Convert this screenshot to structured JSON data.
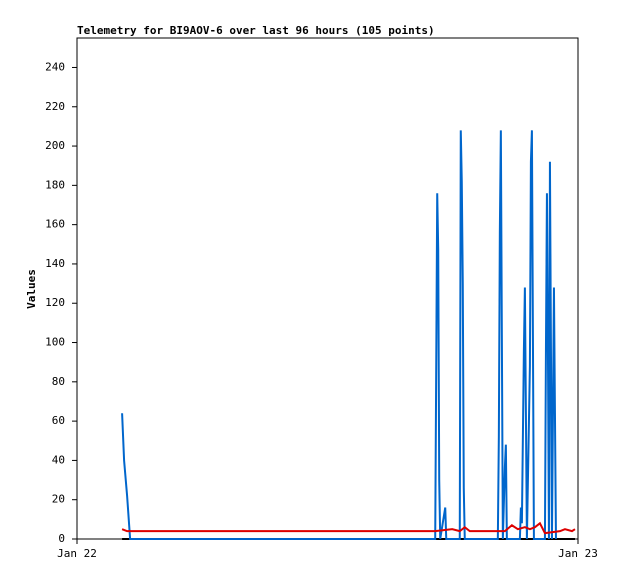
{
  "chart_data": {
    "type": "line",
    "title": "Telemetry for BI9AOV-6 over last 96 hours (105 points)",
    "y_label": "Values",
    "xlim": [
      0,
      1
    ],
    "xticks": [
      {
        "value": 0,
        "label": "Jan 22"
      },
      {
        "value": 1,
        "label": "Jan 23"
      }
    ],
    "ylim": [
      0,
      255
    ],
    "yticks": [
      0,
      20,
      40,
      60,
      80,
      100,
      120,
      140,
      160,
      180,
      200,
      220,
      240
    ],
    "grid": false,
    "series": [
      {
        "color": "#000000",
        "x": [
          0.09,
          0.994
        ],
        "values": [
          0,
          0
        ]
      },
      {
        "color": "#0066cc",
        "x": [
          0.09,
          0.094,
          0.1,
          0.106,
          0.715,
          0.717,
          0.719,
          0.721,
          0.723,
          0.725,
          0.735,
          0.737,
          0.764,
          0.766,
          0.768,
          0.77,
          0.772,
          0.774,
          0.84,
          0.842,
          0.844,
          0.846,
          0.848,
          0.85,
          0.854,
          0.856,
          0.858,
          0.884,
          0.886,
          0.888,
          0.892,
          0.894,
          0.896,
          0.898,
          0.904,
          0.906,
          0.908,
          0.91,
          0.912,
          0.934,
          0.936,
          0.938,
          0.94,
          0.942,
          0.944,
          0.946,
          0.948,
          0.952,
          0.954,
          0.956
        ],
        "values": [
          64,
          40,
          22,
          0,
          0,
          88,
          176,
          147,
          30,
          0,
          16,
          0,
          0,
          208,
          182,
          130,
          26,
          0,
          0,
          52,
          156,
          208,
          104,
          0,
          36,
          48,
          0,
          0,
          16,
          8,
          96,
          128,
          64,
          0,
          88,
          192,
          208,
          104,
          0,
          0,
          96,
          176,
          96,
          0,
          192,
          96,
          0,
          128,
          64,
          0
        ]
      },
      {
        "color": "#dd0000",
        "x": [
          0.09,
          0.1,
          0.715,
          0.749,
          0.764,
          0.774,
          0.784,
          0.84,
          0.854,
          0.868,
          0.88,
          0.894,
          0.904,
          0.914,
          0.924,
          0.934,
          0.964,
          0.974,
          0.988,
          0.994
        ],
        "values": [
          5,
          4,
          4,
          5,
          4,
          6,
          4,
          4,
          4,
          7,
          5,
          6,
          5,
          6,
          8,
          3,
          4,
          5,
          4,
          5
        ]
      }
    ]
  }
}
